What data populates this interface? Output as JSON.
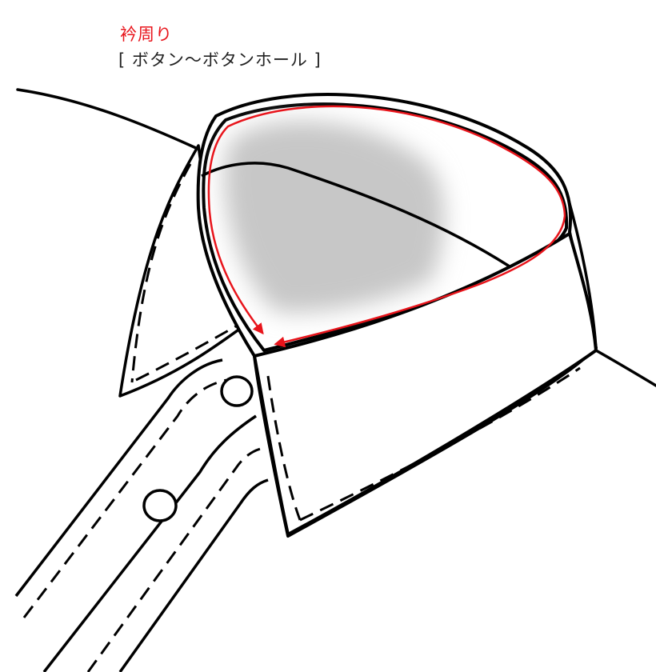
{
  "diagram": {
    "title": "衿周り",
    "subtitle": "[ ボタン〜ボタンホール ]"
  },
  "colors": {
    "accent": "#e8141b",
    "outline": "#000000",
    "shade": "#c7c7c7",
    "text": "#222222"
  },
  "icons": {
    "pointer": "arrow-head-icon",
    "buttons": "button-circle-icon"
  }
}
